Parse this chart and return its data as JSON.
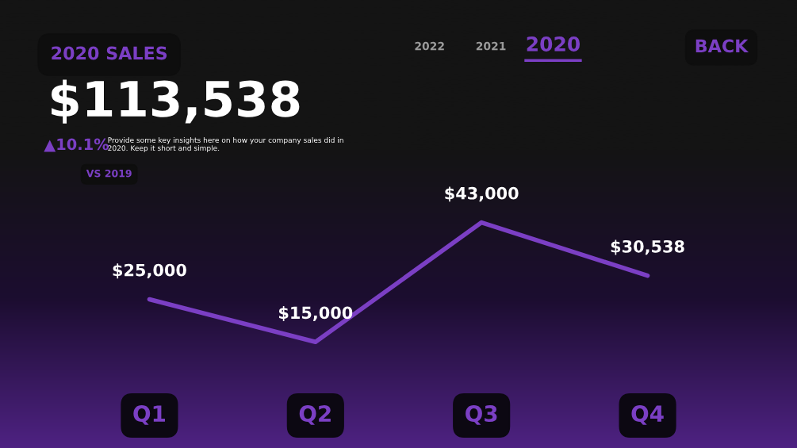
{
  "chart_data": {
    "type": "line",
    "title": "2020 SALES",
    "subtitle": "$113,538",
    "annotations": [
      "▲10.1%",
      "Provide some key insights here on how your company sales did in 2020. Keep it short and simple.",
      "VS 2019",
      "2022",
      "2021",
      "2020",
      "BACK"
    ],
    "categories": [
      "Q1",
      "Q2",
      "Q3",
      "Q4"
    ],
    "series": [
      {
        "color": "#7b3fc4",
        "values": [
          25000,
          15000,
          43000,
          30538
        ],
        "value_labels": [
          "$25,000",
          "$15,000",
          "$43,000",
          "$30,538"
        ]
      }
    ],
    "grid": false,
    "legend": false,
    "marker": "none",
    "line_style": "solid",
    "tick_labels": "x"
  }
}
